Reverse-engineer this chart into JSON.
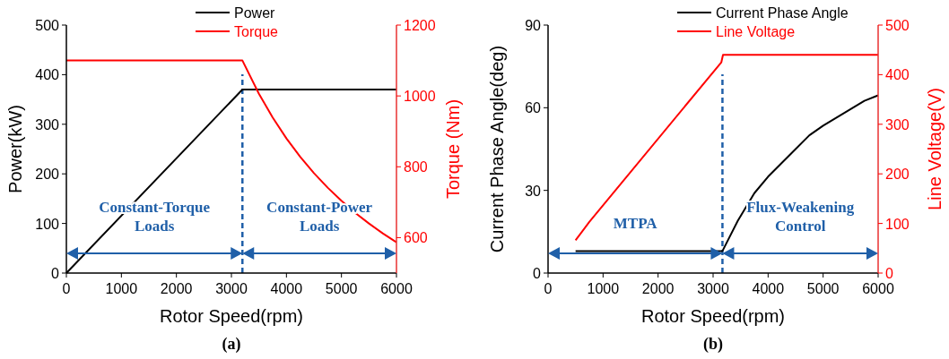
{
  "chart_data": [
    {
      "type": "line",
      "xlabel": "Rotor Speed(rpm)",
      "ylabel": "Power(kW)",
      "y2label": "Torque (Nm)",
      "xlim": [
        0,
        6000
      ],
      "xticks": [
        0,
        1000,
        2000,
        3000,
        4000,
        5000,
        6000
      ],
      "ylim": [
        0,
        500
      ],
      "yticks": [
        0,
        100,
        200,
        300,
        400,
        500
      ],
      "y2lim": [
        500,
        1200
      ],
      "y2ticks": [
        600,
        800,
        1000,
        1200
      ],
      "legend": "top",
      "grid": false,
      "marker": "none",
      "line_style": "solid",
      "series": [
        {
          "name": "Power",
          "color": "#000000",
          "x": [
            0,
            3200,
            6000
          ],
          "values": [
            0,
            370,
            370
          ]
        },
        {
          "name": "Torque",
          "color": "#ff0000",
          "axis": "y2",
          "x": [
            0,
            3200,
            3500,
            3750,
            4000,
            4250,
            4500,
            4750,
            5000,
            5250,
            5500,
            5750,
            6000
          ],
          "values": [
            1100,
            1100,
            1006,
            939,
            880,
            828,
            782,
            741,
            704,
            670,
            640,
            612,
            587
          ]
        }
      ],
      "ref_lines": [
        {
          "axis": "x",
          "value": 3200,
          "color": "#1f5fa8",
          "line_style": "dashed"
        }
      ],
      "annotations": [
        "Constant-Torque Loads",
        "Constant-Power Loads",
        "(a)"
      ]
    },
    {
      "type": "line",
      "xlabel": "Rotor Speed(rpm)",
      "ylabel": "Current Phase Angle(deg)",
      "y2label": "Line Voltage(V)",
      "xlim": [
        0,
        6000
      ],
      "xticks": [
        0,
        1000,
        2000,
        3000,
        4000,
        5000,
        6000
      ],
      "ylim": [
        0,
        90
      ],
      "yticks": [
        0,
        30,
        60,
        90
      ],
      "y2lim": [
        0,
        500
      ],
      "y2ticks": [
        0,
        100,
        200,
        300,
        400,
        500
      ],
      "legend": "top",
      "grid": false,
      "marker": "none",
      "line_style": "solid",
      "series": [
        {
          "name": "Current Phase Angle",
          "color": "#000000",
          "x": [
            500,
            3170,
            3450,
            3750,
            4000,
            4500,
            4750,
            5000,
            5500,
            5750,
            6000
          ],
          "values": [
            8,
            8,
            19,
            29,
            35,
            45,
            50,
            53.5,
            59.5,
            62.5,
            64.5
          ]
        },
        {
          "name": "Line Voltage",
          "color": "#ff0000",
          "axis": "y2",
          "x": [
            500,
            750,
            3150,
            3180,
            6000
          ],
          "values": [
            66,
            103,
            425,
            440,
            440
          ]
        }
      ],
      "ref_lines": [
        {
          "axis": "x",
          "value": 3170,
          "color": "#1f5fa8",
          "line_style": "dashed"
        }
      ],
      "annotations": [
        "MTPA",
        "Flux-Weakening Control",
        "(b)"
      ]
    }
  ]
}
